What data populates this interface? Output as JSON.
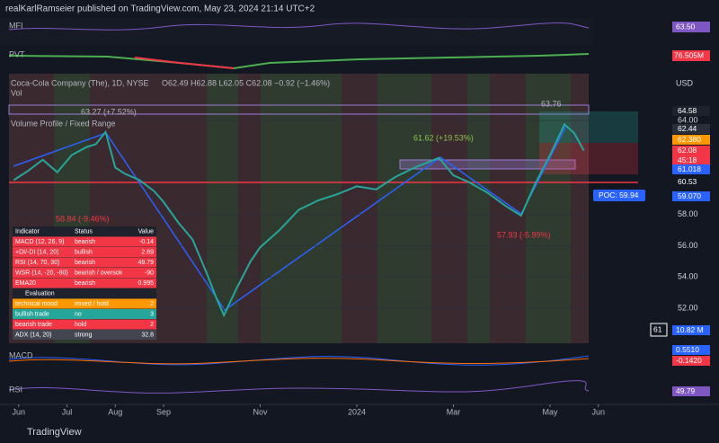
{
  "header": "realKarlRamseier published on TradingView.com, May 23, 2024 21:14 UTC+2",
  "footer": "TradingView",
  "panels": {
    "mfi": {
      "label": "MFI",
      "value": "63.50"
    },
    "pvt": {
      "label": "PVT",
      "value": "76.505M"
    },
    "macd": {
      "label": "MACD",
      "value1": "0.5510",
      "value2": "-0.1420"
    },
    "rsi": {
      "label": "RSI",
      "value": "49.79"
    }
  },
  "chart_data": {
    "type": "line",
    "title": "Coca-Cola Company (The), 1D, NYSE",
    "ohlc": "O62.49 H62.88 L62.05 C62.08 −0.92 (−1.46%)",
    "sub1": "Vol",
    "sub2": "Volume Profile / Fixed Range",
    "currency": "USD",
    "x": [
      -0.1,
      0.2,
      0.5,
      0.8,
      1.1,
      1.4,
      1.6,
      1.8,
      2.0,
      2.2,
      2.5,
      2.8,
      3.0,
      3.3,
      3.6,
      3.9,
      4.1,
      4.25,
      4.5,
      4.8,
      5.0,
      5.4,
      5.8,
      6.2,
      6.6,
      7.0,
      7.4,
      7.8,
      8.2,
      8.7,
      9.0,
      9.3,
      9.7,
      10.1,
      10.4,
      10.7,
      11.0,
      11.3,
      11.5,
      11.7
    ],
    "values": [
      60.2,
      60.8,
      61.5,
      60.7,
      61.8,
      62.3,
      62.5,
      63.27,
      61.0,
      60.6,
      60.2,
      59.5,
      58.8,
      57.5,
      56.4,
      54.2,
      52.6,
      51.55,
      53.2,
      55.0,
      55.9,
      57.0,
      58.3,
      58.9,
      59.3,
      59.8,
      59.6,
      60.4,
      61.0,
      61.62,
      60.5,
      60.1,
      59.4,
      58.5,
      57.93,
      60.0,
      61.8,
      63.76,
      63.2,
      62.08
    ],
    "color": "#26a69a",
    "xlim": [
      -0.2,
      11.8
    ],
    "xticks": [
      {
        "value": 0,
        "label": "Jun"
      },
      {
        "value": 1,
        "label": "Jul"
      },
      {
        "value": 2,
        "label": "Aug"
      },
      {
        "value": 3,
        "label": "Sep"
      },
      {
        "value": 5,
        "label": "Nov"
      },
      {
        "value": 7,
        "label": "2024"
      },
      {
        "value": 9,
        "label": "Mar"
      },
      {
        "value": 11,
        "label": "May"
      },
      {
        "value": 12,
        "label": "Jun"
      }
    ],
    "ylim": [
      50.8,
      67.0
    ],
    "yticks": [
      {
        "value": 52,
        "label": "52.00"
      },
      {
        "value": 54,
        "label": "54.00"
      },
      {
        "value": 56,
        "label": "56.00"
      },
      {
        "value": 58,
        "label": "58.00"
      },
      {
        "value": 64,
        "label": "64.00"
      }
    ],
    "price_labels": [
      "64.58",
      "62.44",
      "62.380",
      "62.08",
      "45:18",
      "61.018",
      "60.53",
      "59.070",
      "POC: 59.94",
      "61",
      "10.82 M"
    ],
    "annotations": [
      "63.27 (+7.52%)",
      "61.62 (+19.53%)",
      "57.93 (-5.99%)",
      "58.84 (-9.46%)",
      "63.76"
    ]
  },
  "table": {
    "header": [
      "Indicator",
      "Status",
      "Value"
    ],
    "rows": [
      [
        "MACD (12, 26, 9)",
        "bearish",
        "-0.14"
      ],
      [
        "+DI/-DI (14, 20)",
        "bullish",
        "2.69"
      ],
      [
        "RSI (14, 70, 30)",
        "bearish",
        "49.79"
      ],
      [
        "WSR (14, -20, -80)",
        "bearish / oversold",
        "-90"
      ],
      [
        "EMA20",
        "bearish",
        "0.995"
      ]
    ],
    "section": "Evaluation",
    "eval": [
      [
        "technical mood",
        "mixed / hold",
        "2"
      ],
      [
        "bullish trade",
        "no",
        "3"
      ],
      [
        "bearish trade",
        "hold",
        "2"
      ],
      [
        "ADX (14, 20)",
        "strong",
        "32.8"
      ]
    ]
  }
}
